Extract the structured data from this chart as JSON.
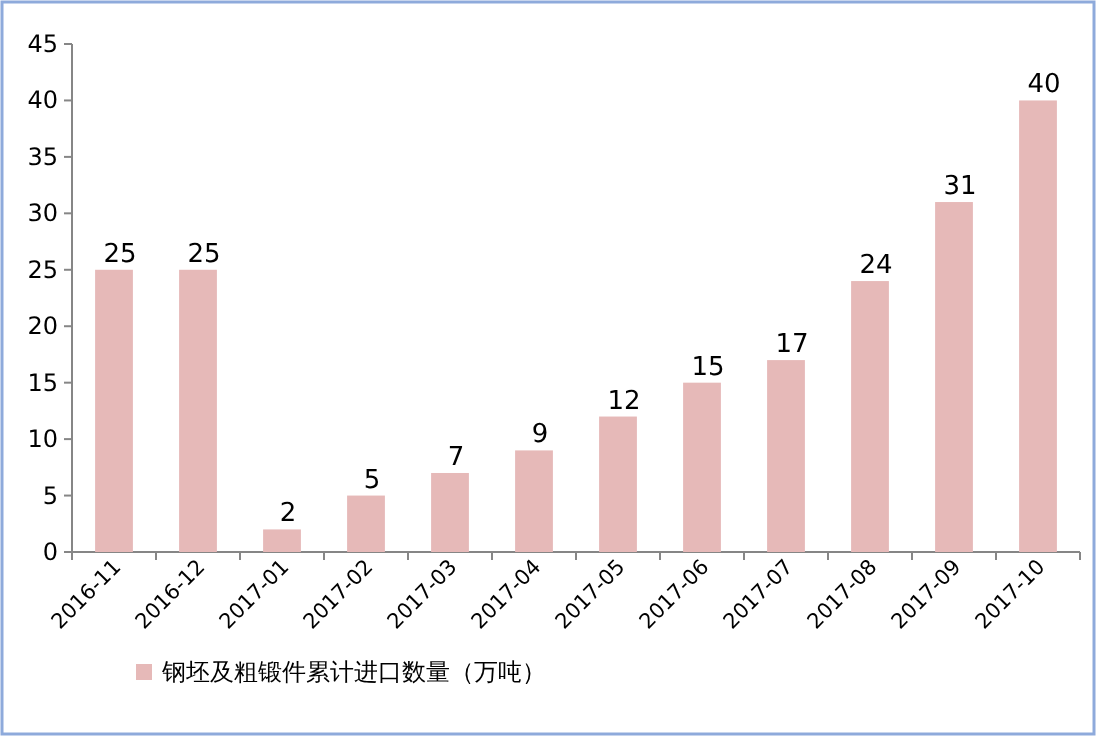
{
  "chart_data": {
    "type": "bar",
    "categories": [
      "2016-11",
      "2016-12",
      "2017-01",
      "2017-02",
      "2017-03",
      "2017-04",
      "2017-05",
      "2017-06",
      "2017-07",
      "2017-08",
      "2017-09",
      "2017-10"
    ],
    "series": [
      {
        "name": "钢坯及粗锻件累计进口数量（万吨）",
        "color": "#e6b9b8",
        "values": [
          25,
          25,
          2,
          5,
          7,
          9,
          12,
          15,
          17,
          24,
          31,
          40
        ]
      }
    ],
    "ylim": [
      0,
      45
    ],
    "yticks": [
      0,
      5,
      10,
      15,
      20,
      25,
      30,
      35,
      40,
      45
    ],
    "data_labels": true,
    "legend": "bottom",
    "grid": false
  }
}
